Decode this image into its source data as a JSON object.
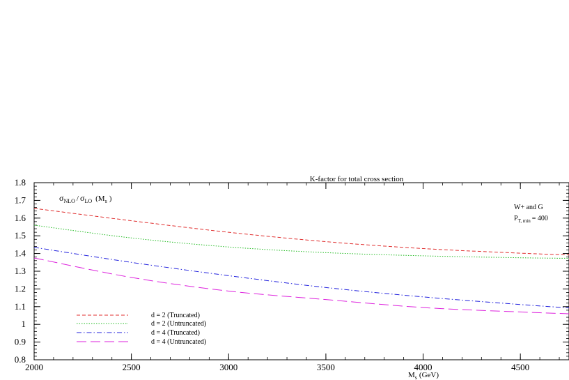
{
  "chart_data": {
    "type": "line",
    "title": "K-factor for total cross section",
    "xlabel": "M",
    "xlabel_sub": "s",
    "xlabel_unit": "(GeV)",
    "ylabel_parts": {
      "sigma1": "σ",
      "sub1": "NLO",
      "slash": "/",
      "sigma2": "σ",
      "sub2": "LO",
      "arg_open": "(M",
      "arg_sub": "s",
      "arg_close": ")"
    },
    "annotation_process": "W+ and G",
    "annotation_pt": {
      "main": "P",
      "sub": "T, min",
      "rest": "= 400"
    },
    "xlim": [
      2000,
      4750
    ],
    "ylim": [
      0.8,
      1.8
    ],
    "x_ticks": [
      "2000",
      "2500",
      "3000",
      "3500",
      "4000",
      "4500"
    ],
    "y_ticks": [
      "0.8",
      "0.9",
      "1",
      "1.1",
      "1.2",
      "1.3",
      "1.4",
      "1.5",
      "1.6",
      "1.7",
      "1.8"
    ],
    "legend_position": "lower-left",
    "series": [
      {
        "name": "d = 2 (Truncated)",
        "color": "#e03030",
        "dash": "5,3",
        "x": [
          2000,
          2500,
          3000,
          3500,
          4000,
          4500,
          4750
        ],
        "y": [
          1.655,
          1.585,
          1.52,
          1.467,
          1.428,
          1.402,
          1.392
        ]
      },
      {
        "name": "d = 2 (Untruncated)",
        "color": "#22bb22",
        "dash": "1.5,2",
        "x": [
          2000,
          2500,
          3000,
          3500,
          4000,
          4500,
          4750
        ],
        "y": [
          1.56,
          1.488,
          1.437,
          1.405,
          1.387,
          1.376,
          1.373
        ]
      },
      {
        "name": "d = 4 (Truncated)",
        "color": "#2222dd",
        "dash": "7,3,1.5,3",
        "x": [
          2000,
          2500,
          3000,
          3500,
          4000,
          4500,
          4750
        ],
        "y": [
          1.435,
          1.35,
          1.275,
          1.208,
          1.155,
          1.112,
          1.093
        ]
      },
      {
        "name": "d = 4 (Untruncated)",
        "color": "#dd22dd",
        "dash": "14,6",
        "x": [
          2000,
          2500,
          3000,
          3500,
          4000,
          4500,
          4750
        ],
        "y": [
          1.375,
          1.265,
          1.188,
          1.14,
          1.095,
          1.07,
          1.06
        ]
      }
    ]
  }
}
